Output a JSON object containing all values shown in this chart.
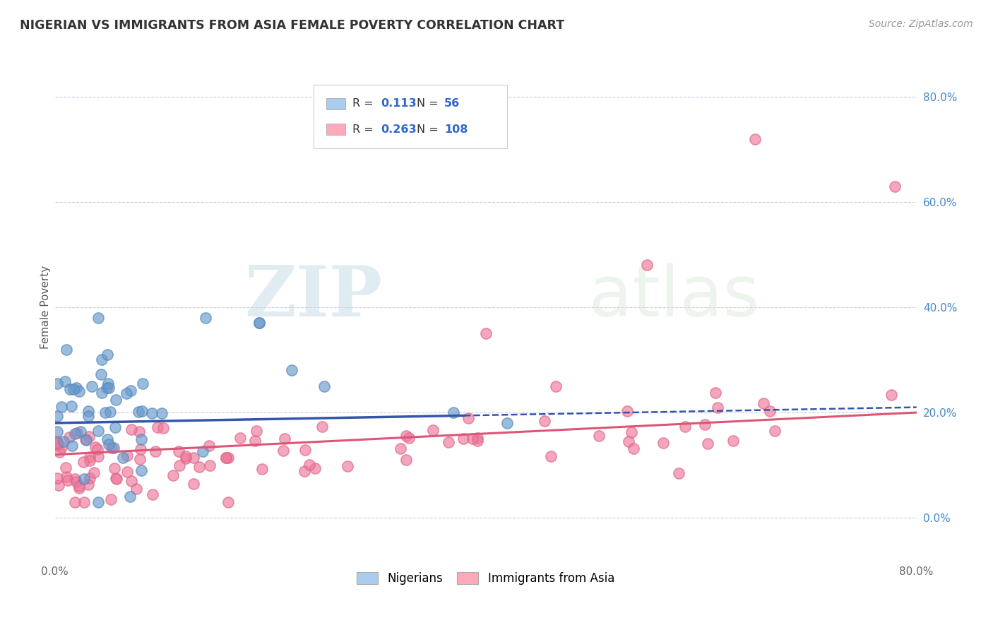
{
  "title": "NIGERIAN VS IMMIGRANTS FROM ASIA FEMALE POVERTY CORRELATION CHART",
  "source": "Source: ZipAtlas.com",
  "ylabel": "Female Poverty",
  "watermark_zip": "ZIP",
  "watermark_atlas": "atlas",
  "bottom_legend": [
    "Nigerians",
    "Immigrants from Asia"
  ],
  "blue_scatter_color": "#6699cc",
  "pink_scatter_color": "#ee7799",
  "blue_scatter_edge": "#5588bb",
  "pink_scatter_edge": "#dd6688",
  "blue_fill": "#aaccee",
  "pink_fill": "#ffaabb",
  "trendline_blue_color": "#3355aa",
  "trendline_pink_color": "#dd5577",
  "grid_color": "#ccccdd",
  "background_color": "#ffffff",
  "xmin": 0.0,
  "xmax": 0.8,
  "ymin": -0.08,
  "ymax": 0.88,
  "right_yticks": [
    0.0,
    0.2,
    0.4,
    0.6,
    0.8
  ],
  "right_yticklabels": [
    "0.0%",
    "20.0%",
    "40.0%",
    "60.0%",
    "80.0%"
  ],
  "right_ytick_color": "#4488cc",
  "source_color": "#999999",
  "title_color": "#333333"
}
